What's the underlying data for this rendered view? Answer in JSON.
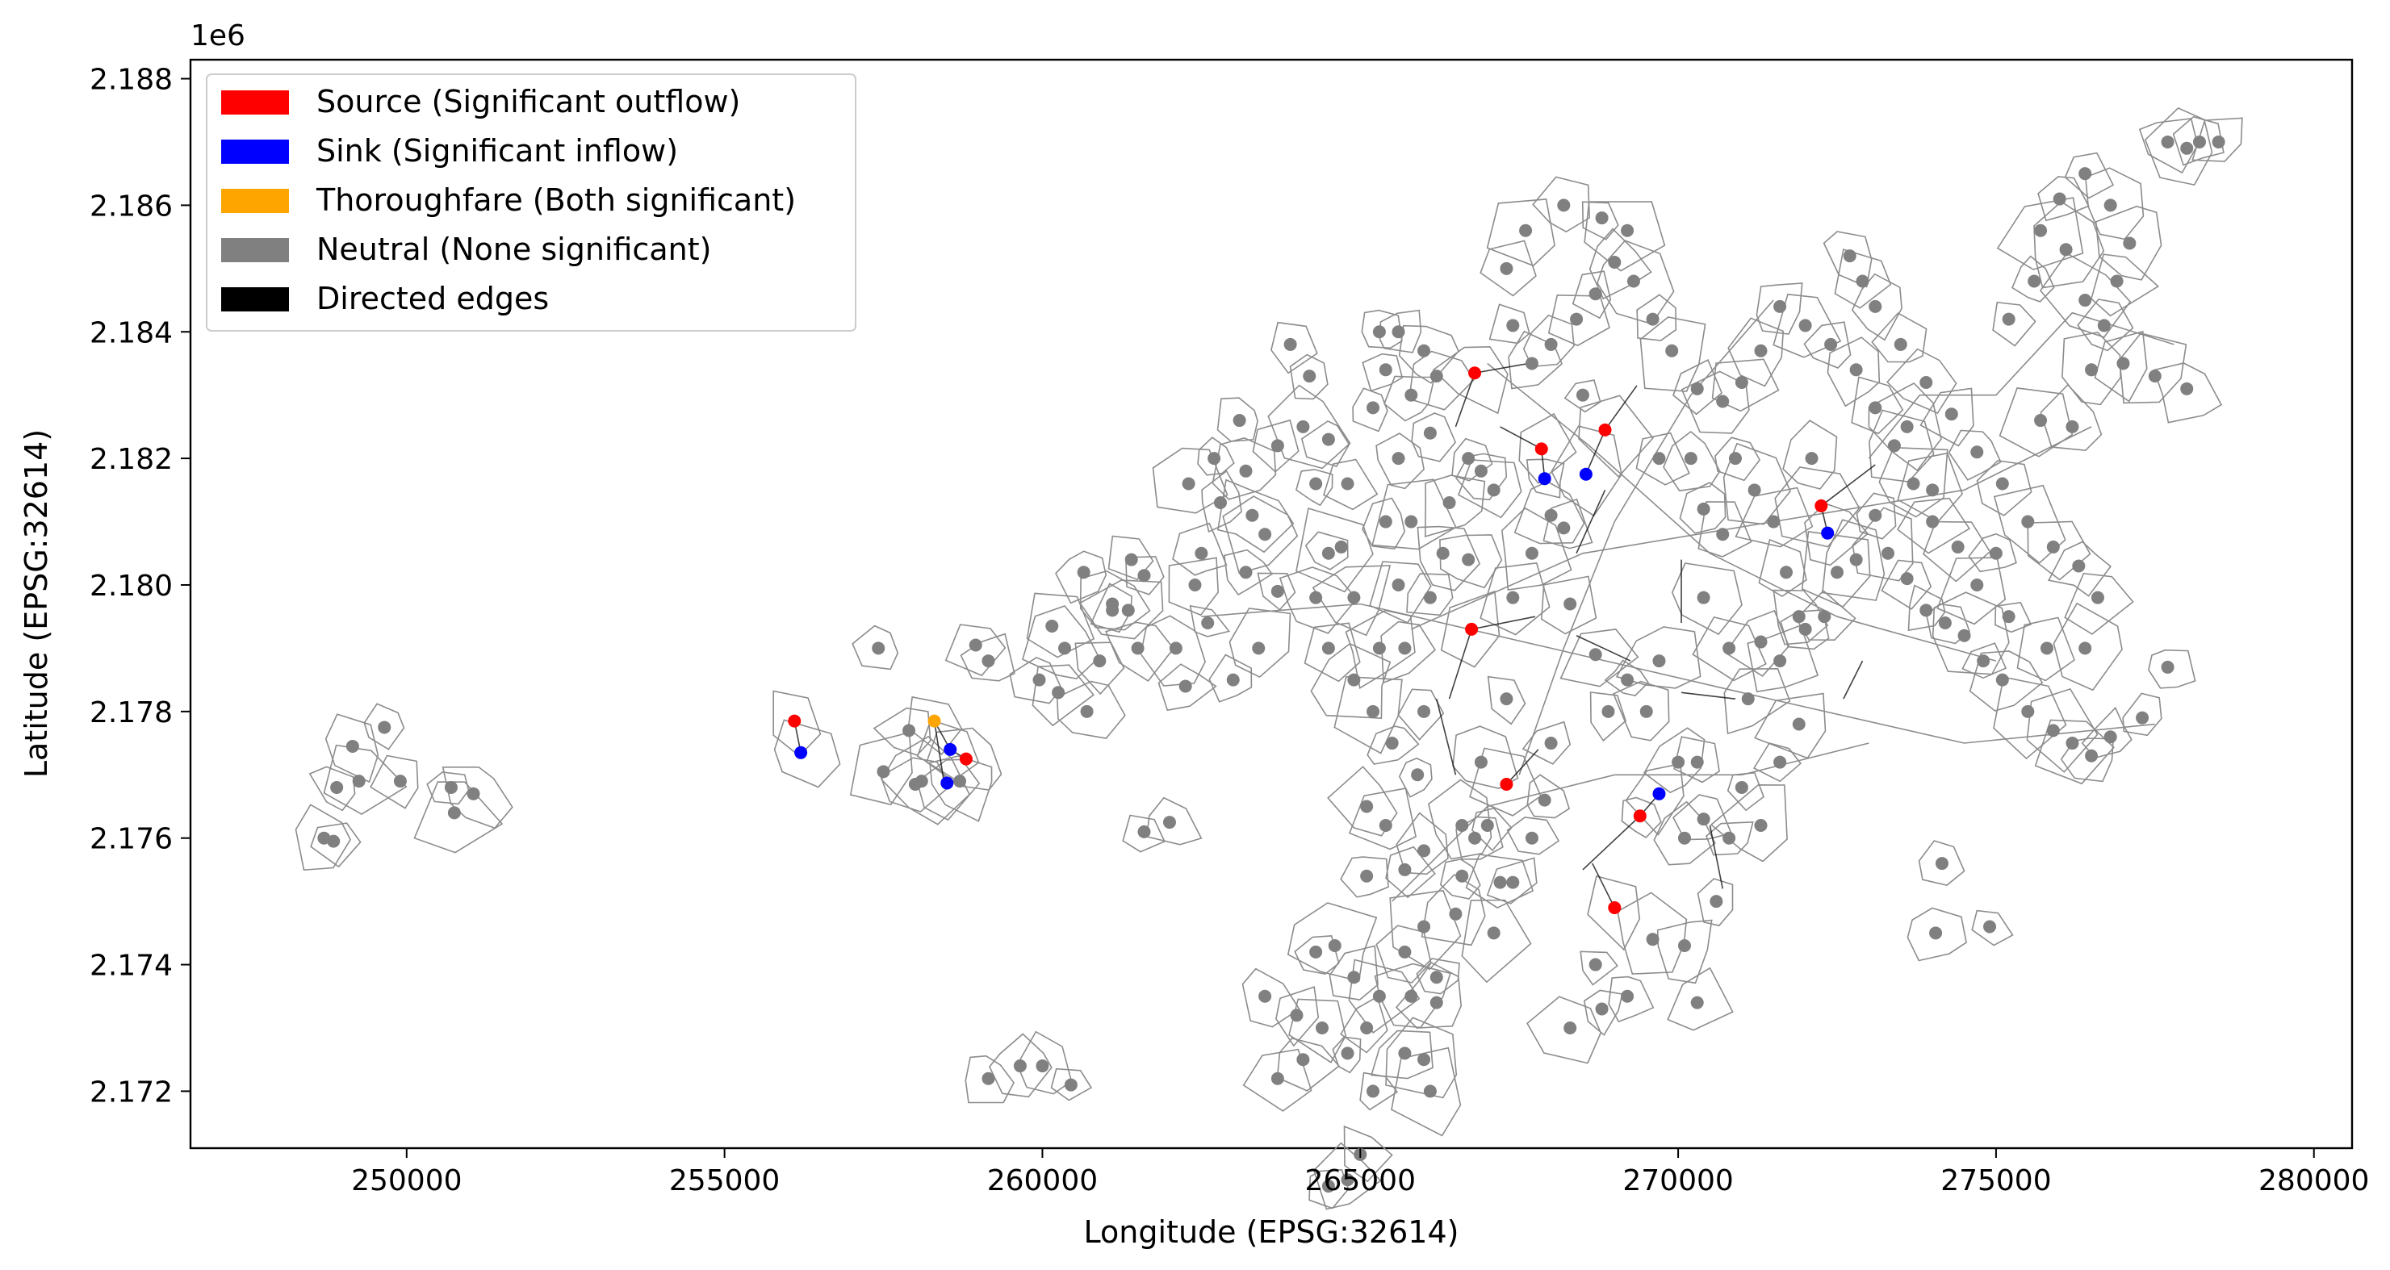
{
  "chart_data": {
    "type": "scatter",
    "title": "",
    "xlabel": "Longitude (EPSG:32614)",
    "ylabel": "Latitude (EPSG:32614)",
    "y_offset_label": "1e6",
    "xlim": [
      246600,
      280600
    ],
    "ylim": [
      2.1711,
      2.1883
    ],
    "x_ticks": [
      250000,
      255000,
      260000,
      265000,
      270000,
      275000,
      280000
    ],
    "x_tick_labels": [
      "250000",
      "255000",
      "260000",
      "265000",
      "270000",
      "275000",
      "280000"
    ],
    "y_ticks": [
      2.172,
      2.174,
      2.176,
      2.178,
      2.18,
      2.182,
      2.184,
      2.186,
      2.188
    ],
    "y_tick_labels": [
      "2.172",
      "2.174",
      "2.176",
      "2.178",
      "2.180",
      "2.182",
      "2.184",
      "2.186",
      "2.188"
    ],
    "grid": false,
    "legend_position": "top-left",
    "legend": [
      {
        "label": "Source (Significant outflow)",
        "color": "#ff0000"
      },
      {
        "label": "Sink (Significant inflow)",
        "color": "#0000ff"
      },
      {
        "label": "Thoroughfare (Both significant)",
        "color": "#ffa500"
      },
      {
        "label": "Neutral (None significant)",
        "color": "#808080"
      },
      {
        "label": "Directed edges",
        "color": "#000000"
      }
    ],
    "colors": {
      "source": "#ff0000",
      "sink": "#0000ff",
      "thoroughfare": "#ffa500",
      "neutral": "#808080",
      "boundary": "#8c8c8c",
      "edge": "#000000"
    },
    "classified_points": [
      {
        "class": "source",
        "x": 266800,
        "y": 2.18335
      },
      {
        "class": "source",
        "x": 267850,
        "y": 2.18215
      },
      {
        "class": "source",
        "x": 268850,
        "y": 2.18245
      },
      {
        "class": "source",
        "x": 272250,
        "y": 2.18125
      },
      {
        "class": "source",
        "x": 266750,
        "y": 2.1793
      },
      {
        "class": "source",
        "x": 256100,
        "y": 2.17785
      },
      {
        "class": "source",
        "x": 258800,
        "y": 2.17725
      },
      {
        "class": "source",
        "x": 267300,
        "y": 2.17685
      },
      {
        "class": "source",
        "x": 269400,
        "y": 2.17635
      },
      {
        "class": "source",
        "x": 269000,
        "y": 2.1749
      },
      {
        "class": "sink",
        "x": 267900,
        "y": 2.18168
      },
      {
        "class": "sink",
        "x": 268550,
        "y": 2.18175
      },
      {
        "class": "sink",
        "x": 272350,
        "y": 2.18082
      },
      {
        "class": "sink",
        "x": 256200,
        "y": 2.17735
      },
      {
        "class": "sink",
        "x": 258550,
        "y": 2.1774
      },
      {
        "class": "sink",
        "x": 258500,
        "y": 2.17687
      },
      {
        "class": "sink",
        "x": 269700,
        "y": 2.1767
      },
      {
        "class": "thoroughfare",
        "x": 258300,
        "y": 2.17785
      }
    ],
    "edges": [
      [
        266800,
        2.18335,
        266500,
        2.1825
      ],
      [
        266800,
        2.18335,
        267650,
        2.1835
      ],
      [
        267850,
        2.18215,
        267900,
        2.18168
      ],
      [
        267850,
        2.18215,
        267200,
        2.1825
      ],
      [
        268850,
        2.18245,
        268550,
        2.18175
      ],
      [
        268850,
        2.18245,
        269350,
        2.18315
      ],
      [
        272250,
        2.18125,
        272350,
        2.18082
      ],
      [
        272250,
        2.18125,
        273100,
        2.1819
      ],
      [
        266750,
        2.1793,
        267750,
        2.1795
      ],
      [
        266750,
        2.1793,
        266400,
        2.1782
      ],
      [
        256100,
        2.17785,
        256200,
        2.17735
      ],
      [
        258300,
        2.17785,
        258550,
        2.1774
      ],
      [
        258300,
        2.17785,
        258450,
        2.1769
      ],
      [
        258800,
        2.17725,
        258550,
        2.1774
      ],
      [
        267300,
        2.17685,
        267800,
        2.1774
      ],
      [
        269400,
        2.17635,
        269700,
        2.1767
      ],
      [
        269400,
        2.17635,
        268500,
        2.1755
      ],
      [
        269000,
        2.1749,
        268650,
        2.1756
      ],
      [
        268400,
        2.1805,
        268850,
        2.1815
      ],
      [
        268400,
        2.1792,
        269250,
        2.1788
      ],
      [
        270050,
        2.1794,
        270050,
        2.1804
      ],
      [
        270050,
        2.1783,
        270900,
        2.1782
      ],
      [
        272600,
        2.1782,
        272900,
        2.1788
      ],
      [
        266200,
        2.1782,
        266500,
        2.177
      ],
      [
        270500,
        2.1762,
        270700,
        2.1752
      ]
    ],
    "neutral_points": [
      [
        248700,
        2.176
      ],
      [
        248900,
        2.1768
      ],
      [
        249150,
        2.17745
      ],
      [
        249250,
        2.1769
      ],
      [
        249650,
        2.17775
      ],
      [
        249900,
        2.1769
      ],
      [
        250700,
        2.1768
      ],
      [
        250750,
        2.1764
      ],
      [
        251050,
        2.1767
      ],
      [
        248850,
        2.17595
      ],
      [
        257420,
        2.179
      ],
      [
        257500,
        2.17705
      ],
      [
        258000,
        2.17685
      ],
      [
        258100,
        2.1769
      ],
      [
        258700,
        2.1769
      ],
      [
        258950,
        2.17905
      ],
      [
        259150,
        2.1788
      ],
      [
        257900,
        2.1777
      ],
      [
        259950,
        2.1785
      ],
      [
        260150,
        2.17935
      ],
      [
        260250,
        2.1783
      ],
      [
        260350,
        2.179
      ],
      [
        260650,
        2.1802
      ],
      [
        260900,
        2.1788
      ],
      [
        261100,
        2.1796
      ],
      [
        261350,
        2.1796
      ],
      [
        261400,
        2.1804
      ],
      [
        261600,
        2.18015
      ],
      [
        261100,
        2.1797
      ],
      [
        260700,
        2.178
      ],
      [
        261500,
        2.179
      ],
      [
        262100,
        2.179
      ],
      [
        262250,
        2.1784
      ],
      [
        262600,
        2.1794
      ],
      [
        262400,
        2.18
      ],
      [
        262500,
        2.1805
      ],
      [
        262800,
        2.1813
      ],
      [
        262300,
        2.1816
      ],
      [
        262700,
        2.182
      ],
      [
        263100,
        2.1826
      ],
      [
        263200,
        2.1818
      ],
      [
        263300,
        2.1811
      ],
      [
        263500,
        2.1808
      ],
      [
        263200,
        2.1802
      ],
      [
        263700,
        2.1799
      ],
      [
        263400,
        2.179
      ],
      [
        263700,
        2.1822
      ],
      [
        264100,
        2.1825
      ],
      [
        263900,
        2.1838
      ],
      [
        264200,
        2.1833
      ],
      [
        264500,
        2.1823
      ],
      [
        264300,
        2.1816
      ],
      [
        264800,
        2.1816
      ],
      [
        264700,
        2.1806
      ],
      [
        264300,
        2.1798
      ],
      [
        264900,
        2.1798
      ],
      [
        264500,
        2.179
      ],
      [
        264900,
        2.1785
      ],
      [
        265200,
        2.178
      ],
      [
        265300,
        2.179
      ],
      [
        265600,
        2.18
      ],
      [
        265400,
        2.181
      ],
      [
        265800,
        2.181
      ],
      [
        265600,
        2.182
      ],
      [
        265200,
        2.1828
      ],
      [
        265800,
        2.183
      ],
      [
        266000,
        2.1837
      ],
      [
        265300,
        2.184
      ],
      [
        265400,
        2.1834
      ],
      [
        265600,
        2.184
      ],
      [
        266200,
        2.1833
      ],
      [
        266100,
        2.1824
      ],
      [
        266400,
        2.1813
      ],
      [
        266700,
        2.182
      ],
      [
        266900,
        2.1818
      ],
      [
        267100,
        2.1815
      ],
      [
        266300,
        2.1805
      ],
      [
        266700,
        2.1804
      ],
      [
        266100,
        2.1798
      ],
      [
        265700,
        2.179
      ],
      [
        266000,
        2.178
      ],
      [
        265500,
        2.1775
      ],
      [
        265900,
        2.177
      ],
      [
        265400,
        2.1762
      ],
      [
        265100,
        2.1765
      ],
      [
        265100,
        2.1754
      ],
      [
        265700,
        2.1755
      ],
      [
        266000,
        2.1758
      ],
      [
        266000,
        2.1746
      ],
      [
        266500,
        2.1748
      ],
      [
        266200,
        2.1738
      ],
      [
        265700,
        2.1742
      ],
      [
        265300,
        2.1735
      ],
      [
        264900,
        2.1738
      ],
      [
        264600,
        2.1743
      ],
      [
        264400,
        2.173
      ],
      [
        264800,
        2.1726
      ],
      [
        265100,
        2.173
      ],
      [
        265200,
        2.172
      ],
      [
        265700,
        2.1726
      ],
      [
        266000,
        2.1725
      ],
      [
        266200,
        2.1734
      ],
      [
        265800,
        2.1735
      ],
      [
        264300,
        2.1742
      ],
      [
        264000,
        2.1732
      ],
      [
        264100,
        2.1725
      ],
      [
        263500,
        2.1735
      ],
      [
        263700,
        2.1722
      ],
      [
        266100,
        2.172
      ],
      [
        266600,
        2.1762
      ],
      [
        266600,
        2.1754
      ],
      [
        266800,
        2.176
      ],
      [
        267000,
        2.1762
      ],
      [
        266900,
        2.1772
      ],
      [
        267200,
        2.1753
      ],
      [
        267400,
        2.1753
      ],
      [
        267700,
        2.176
      ],
      [
        267900,
        2.1766
      ],
      [
        268000,
        2.1775
      ],
      [
        267300,
        2.1782
      ],
      [
        267400,
        2.1798
      ],
      [
        267700,
        2.1805
      ],
      [
        268000,
        2.1811
      ],
      [
        268200,
        2.1809
      ],
      [
        268300,
        2.1797
      ],
      [
        268700,
        2.1789
      ],
      [
        268900,
        2.178
      ],
      [
        269200,
        2.1785
      ],
      [
        269500,
        2.178
      ],
      [
        269700,
        2.1788
      ],
      [
        270000,
        2.1772
      ],
      [
        270300,
        2.1772
      ],
      [
        270100,
        2.176
      ],
      [
        270400,
        2.1763
      ],
      [
        270600,
        2.175
      ],
      [
        270800,
        2.176
      ],
      [
        271000,
        2.1768
      ],
      [
        271300,
        2.1762
      ],
      [
        271600,
        2.1772
      ],
      [
        271900,
        2.1778
      ],
      [
        271600,
        2.1788
      ],
      [
        272000,
        2.1793
      ],
      [
        271300,
        2.1791
      ],
      [
        271100,
        2.1782
      ],
      [
        270800,
        2.179
      ],
      [
        270400,
        2.1798
      ],
      [
        270700,
        2.1808
      ],
      [
        270400,
        2.1812
      ],
      [
        270900,
        2.182
      ],
      [
        271200,
        2.1815
      ],
      [
        271500,
        2.181
      ],
      [
        271700,
        2.1802
      ],
      [
        271900,
        2.1795
      ],
      [
        272300,
        2.1795
      ],
      [
        272500,
        2.1802
      ],
      [
        272800,
        2.1804
      ],
      [
        273100,
        2.1811
      ],
      [
        273300,
        2.1805
      ],
      [
        273600,
        2.1801
      ],
      [
        273900,
        2.1796
      ],
      [
        274200,
        2.1794
      ],
      [
        274500,
        2.1792
      ],
      [
        274800,
        2.1788
      ],
      [
        275100,
        2.1785
      ],
      [
        275500,
        2.178
      ],
      [
        275900,
        2.1777
      ],
      [
        276200,
        2.1775
      ],
      [
        276500,
        2.1773
      ],
      [
        276800,
        2.1776
      ],
      [
        277300,
        2.1779
      ],
      [
        277700,
        2.1787
      ],
      [
        276400,
        2.179
      ],
      [
        275800,
        2.179
      ],
      [
        275200,
        2.1795
      ],
      [
        274700,
        2.18
      ],
      [
        274400,
        2.1806
      ],
      [
        274000,
        2.181
      ],
      [
        273700,
        2.1816
      ],
      [
        273400,
        2.1822
      ],
      [
        273100,
        2.1828
      ],
      [
        272800,
        2.1834
      ],
      [
        272400,
        2.1838
      ],
      [
        272000,
        2.1841
      ],
      [
        271600,
        2.1844
      ],
      [
        271300,
        2.1837
      ],
      [
        271000,
        2.1832
      ],
      [
        270700,
        2.1829
      ],
      [
        270300,
        2.1831
      ],
      [
        269900,
        2.1837
      ],
      [
        269600,
        2.1842
      ],
      [
        269300,
        2.1848
      ],
      [
        269000,
        2.1851
      ],
      [
        268700,
        2.1846
      ],
      [
        268400,
        2.1842
      ],
      [
        268000,
        2.1838
      ],
      [
        267700,
        2.1835
      ],
      [
        267400,
        2.1841
      ],
      [
        267300,
        2.185
      ],
      [
        267600,
        2.1856
      ],
      [
        268200,
        2.186
      ],
      [
        268800,
        2.1858
      ],
      [
        269200,
        2.1856
      ],
      [
        272700,
        2.1852
      ],
      [
        272900,
        2.1848
      ],
      [
        273100,
        2.1844
      ],
      [
        273500,
        2.1838
      ],
      [
        273900,
        2.1832
      ],
      [
        274300,
        2.1827
      ],
      [
        274700,
        2.1821
      ],
      [
        275100,
        2.1816
      ],
      [
        275500,
        2.181
      ],
      [
        275900,
        2.1806
      ],
      [
        276300,
        2.1803
      ],
      [
        276600,
        2.1798
      ],
      [
        275700,
        2.1826
      ],
      [
        276200,
        2.1825
      ],
      [
        276500,
        2.1834
      ],
      [
        275200,
        2.1842
      ],
      [
        275600,
        2.1848
      ],
      [
        276100,
        2.1853
      ],
      [
        276400,
        2.1845
      ],
      [
        276700,
        2.1841
      ],
      [
        276900,
        2.1848
      ],
      [
        277100,
        2.1854
      ],
      [
        276800,
        2.186
      ],
      [
        276400,
        2.1865
      ],
      [
        276000,
        2.1861
      ],
      [
        275700,
        2.1856
      ],
      [
        277000,
        2.1835
      ],
      [
        277500,
        2.1833
      ],
      [
        278000,
        2.1831
      ],
      [
        277700,
        2.187
      ],
      [
        278000,
        2.1869
      ],
      [
        278200,
        2.187
      ],
      [
        278500,
        2.187
      ],
      [
        274150,
        2.1756
      ],
      [
        274050,
        2.1745
      ],
      [
        274900,
        2.1746
      ],
      [
        264800,
        2.1706
      ],
      [
        264500,
        2.1705
      ],
      [
        265000,
        2.171
      ],
      [
        261600,
        2.1761
      ],
      [
        262000,
        2.17625
      ],
      [
        259150,
        2.1722
      ],
      [
        259650,
        2.1724
      ],
      [
        260000,
        2.1724
      ],
      [
        260450,
        2.1721
      ],
      [
        264500,
        2.1805
      ],
      [
        263000,
        2.1785
      ],
      [
        268500,
        2.183
      ],
      [
        269700,
        2.182
      ],
      [
        270200,
        2.182
      ],
      [
        272100,
        2.182
      ],
      [
        273600,
        2.1825
      ],
      [
        274000,
        2.1815
      ],
      [
        275000,
        2.1805
      ],
      [
        267100,
        2.1745
      ],
      [
        268700,
        2.174
      ],
      [
        269600,
        2.1744
      ],
      [
        270100,
        2.1743
      ],
      [
        270300,
        2.1734
      ],
      [
        268300,
        2.173
      ],
      [
        268800,
        2.1733
      ],
      [
        269200,
        2.1735
      ]
    ]
  }
}
